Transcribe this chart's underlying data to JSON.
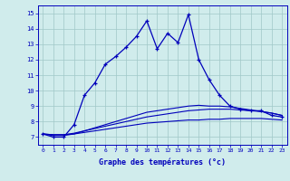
{
  "xlabel": "Graphe des températures (°c)",
  "bg_color": "#d0ecec",
  "line_color": "#0000bb",
  "grid_color": "#a0c8c8",
  "hours": [
    0,
    1,
    2,
    3,
    4,
    5,
    6,
    7,
    8,
    9,
    10,
    11,
    12,
    13,
    14,
    15,
    16,
    17,
    18,
    19,
    20,
    21,
    22,
    23
  ],
  "temp_main": [
    7.2,
    7.0,
    7.0,
    7.8,
    9.7,
    10.5,
    11.7,
    12.2,
    12.8,
    13.5,
    14.5,
    12.7,
    13.7,
    13.1,
    14.9,
    12.0,
    10.7,
    9.7,
    9.0,
    8.8,
    8.7,
    8.7,
    8.4,
    8.3
  ],
  "temp_smooth1": [
    7.2,
    7.15,
    7.15,
    7.2,
    7.3,
    7.4,
    7.5,
    7.6,
    7.7,
    7.8,
    7.9,
    7.95,
    8.0,
    8.05,
    8.1,
    8.1,
    8.15,
    8.15,
    8.2,
    8.2,
    8.2,
    8.2,
    8.15,
    8.1
  ],
  "temp_smooth2": [
    7.2,
    7.15,
    7.15,
    7.25,
    7.4,
    7.55,
    7.7,
    7.85,
    8.0,
    8.15,
    8.3,
    8.4,
    8.5,
    8.6,
    8.7,
    8.75,
    8.8,
    8.8,
    8.8,
    8.75,
    8.7,
    8.65,
    8.55,
    8.4
  ],
  "temp_smooth3": [
    7.2,
    7.1,
    7.1,
    7.2,
    7.4,
    7.6,
    7.8,
    8.0,
    8.2,
    8.4,
    8.6,
    8.7,
    8.8,
    8.9,
    9.0,
    9.05,
    9.0,
    9.0,
    8.95,
    8.85,
    8.75,
    8.65,
    8.55,
    8.4
  ],
  "ylim": [
    6.5,
    15.5
  ],
  "yticks": [
    7,
    8,
    9,
    10,
    11,
    12,
    13,
    14,
    15
  ],
  "xtick_labels": [
    "0",
    "1",
    "2",
    "3",
    "4",
    "5",
    "6",
    "7",
    "8",
    "9",
    "10",
    "11",
    "12",
    "13",
    "14",
    "15",
    "16",
    "17",
    "18",
    "19",
    "20",
    "21",
    "22",
    "23"
  ]
}
